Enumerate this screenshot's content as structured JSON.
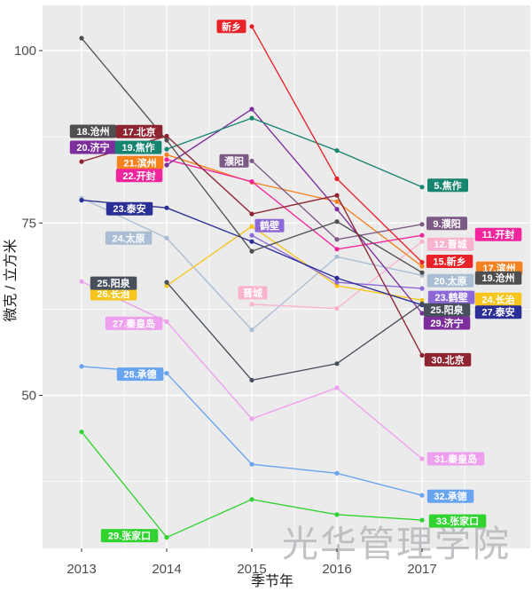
{
  "chart_data": {
    "type": "line",
    "title": "",
    "xlabel": "季节年",
    "ylabel": "微克 / 立方米",
    "x_tick_values": [
      2013,
      2014,
      2015,
      2016,
      2017
    ],
    "x_tick_labels": [
      "2013",
      "2014",
      "2015",
      "2016",
      "2017"
    ],
    "y_tick_values": [
      50,
      75,
      100
    ],
    "y_tick_labels": [
      "50",
      "75",
      "100"
    ],
    "x_minor_ticks": [
      2013.5,
      2014.5,
      2015.5,
      2016.5,
      2017.5
    ],
    "y_minor_ticks": [
      37.5,
      62.5,
      87.5
    ],
    "xlim": [
      2012.55,
      2018.27
    ],
    "ylim": [
      27.8,
      106.6
    ],
    "grid": true,
    "legend_position": "none-direct-labels",
    "panel_bg": "#ebebeb",
    "grid_color": "#ffffff",
    "axis_text_color": "#4d4d4d",
    "watermark": {
      "text": "光华管理学院",
      "color": "#b7b8bc"
    },
    "series": [
      {
        "id": "qinhuangdao",
        "name": "秦皇岛",
        "color": "#ee9fee",
        "x": [
          2013,
          2014,
          2015,
          2016,
          2017
        ],
        "values": [
          66.5,
          60.7,
          46.6,
          51.1,
          40.8
        ],
        "labels": [
          {
            "text": "27.秦皇岛",
            "year": 2014,
            "value": 60.7,
            "dx": -37,
            "dy": 2
          },
          {
            "text": "31.秦皇岛",
            "year": 2017,
            "value": 40.8,
            "dx": 38,
            "dy": 0
          }
        ]
      },
      {
        "id": "taiyuan",
        "name": "太原",
        "color": "#a9bdd3",
        "x": [
          2013,
          2014,
          2015,
          2016,
          2017
        ],
        "values": [
          78.6,
          72.8,
          59.5,
          70.1,
          67.4
        ],
        "labels": [
          {
            "text": "24.太原",
            "year": 2014,
            "value": 72.8,
            "dx": -43,
            "dy": 0
          },
          {
            "text": "20.太原",
            "year": 2017,
            "value": 67.4,
            "dx": 32,
            "dy": 6
          }
        ]
      },
      {
        "id": "chengde",
        "name": "承德",
        "color": "#69a4f0",
        "x": [
          2013,
          2014,
          2015,
          2016,
          2017
        ],
        "values": [
          54.2,
          53.2,
          40.0,
          38.7,
          35.5
        ],
        "labels": [
          {
            "text": "28.承德",
            "year": 2014,
            "value": 53.2,
            "dx": -30,
            "dy": 1
          },
          {
            "text": "32.承德",
            "year": 2017,
            "value": 35.5,
            "dx": 32,
            "dy": 1
          }
        ]
      },
      {
        "id": "zhangjiakou",
        "name": "张家口",
        "color": "#31d331",
        "x": [
          2013,
          2014,
          2015,
          2016,
          2017
        ],
        "values": [
          44.7,
          29.4,
          34.9,
          32.7,
          31.9
        ],
        "labels": [
          {
            "text": "29.张家口",
            "year": 2014,
            "value": 29.4,
            "dx": -42,
            "dy": -2
          },
          {
            "text": "33.张家口",
            "year": 2017,
            "value": 31.9,
            "dx": 40,
            "dy": 1
          }
        ]
      },
      {
        "id": "jincheng",
        "name": "晋城",
        "color": "#f9b3ce",
        "x": [
          2015,
          2016,
          2017
        ],
        "values": [
          63.2,
          62.6,
          72.3
        ],
        "labels": [
          {
            "text": "晋城",
            "year": 2015,
            "value": 63.2,
            "dx": 1,
            "dy": -13
          },
          {
            "text": "12.晋城",
            "year": 2017,
            "value": 72.3,
            "dx": 32,
            "dy": 3
          }
        ]
      },
      {
        "id": "changzhi",
        "name": "长治",
        "color": "#f7c51c",
        "x": [
          2014,
          2015,
          2016,
          2017
        ],
        "values": [
          65.9,
          74.5,
          65.9,
          63.8
        ],
        "labels": [
          {
            "text": "26.长治",
            "year": 2014,
            "value": 65.9,
            "dx": -60,
            "dy": 9
          },
          {
            "text": "24.长治",
            "year": 2017,
            "value": 63.8,
            "dx": 86,
            "dy": -1
          }
        ]
      },
      {
        "id": "binzhou",
        "name": "滨州",
        "color": "#f5821e",
        "x": [
          2014,
          2015,
          2016,
          2017
        ],
        "values": [
          84.9,
          80.9,
          78.1,
          68.7
        ],
        "labels": [
          {
            "text": "21.滨州",
            "year": 2014,
            "value": 84.9,
            "dx": -30,
            "dy": 9
          },
          {
            "text": "17.滨州",
            "year": 2017,
            "value": 68.7,
            "dx": 87,
            "dy": 2
          }
        ]
      },
      {
        "id": "kaifeng",
        "name": "开封",
        "color": "#f2259c",
        "x": [
          2014,
          2015,
          2016,
          2017
        ],
        "values": [
          84.2,
          81.0,
          71.2,
          73.2
        ],
        "labels": [
          {
            "text": "22.开封",
            "year": 2014,
            "value": 84.2,
            "dx": -31,
            "dy": 18
          },
          {
            "text": "11.开封",
            "year": 2017,
            "value": 73.2,
            "dx": 86,
            "dy": -1
          }
        ]
      },
      {
        "id": "hebi",
        "name": "鹤壁",
        "color": "#8c68d8",
        "x": [
          2015,
          2016,
          2017
        ],
        "values": [
          73.2,
          66.4,
          65.5
        ],
        "labels": [
          {
            "text": "鹤壁",
            "year": 2015,
            "value": 73.2,
            "dx": 20,
            "dy": -11
          },
          {
            "text": "23.鹤壁",
            "year": 2017,
            "value": 65.5,
            "dx": 33,
            "dy": 10
          }
        ]
      },
      {
        "id": "puyang",
        "name": "濮阳",
        "color": "#7d5a85",
        "x": [
          2015,
          2016,
          2017
        ],
        "values": [
          84.0,
          72.6,
          74.8
        ],
        "labels": [
          {
            "text": "濮阳",
            "year": 2015,
            "value": 84.0,
            "dx": -20,
            "dy": 0
          },
          {
            "text": "9.濮阳",
            "year": 2017,
            "value": 74.8,
            "dx": 28,
            "dy": -1
          }
        ]
      },
      {
        "id": "jining",
        "name": "济宁",
        "color": "#7d2d9c",
        "x": [
          2014,
          2015,
          2016,
          2017
        ],
        "values": [
          83.4,
          91.5,
          77.0,
          61.9
        ],
        "labels": [
          {
            "text": "20.济宁",
            "year": 2014,
            "value": 83.4,
            "dx": -83,
            "dy": -20
          },
          {
            "text": "29.济宁",
            "year": 2017,
            "value": 61.9,
            "dx": 28,
            "dy": 11
          }
        ]
      },
      {
        "id": "jiaozuo",
        "name": "焦作",
        "color": "#16856f",
        "x": [
          2014,
          2015,
          2016,
          2017
        ],
        "values": [
          85.7,
          90.2,
          85.5,
          80.2
        ],
        "labels": [
          {
            "text": "19.焦作",
            "year": 2014,
            "value": 85.7,
            "dx": -32,
            "dy": -2
          },
          {
            "text": "5.焦作",
            "year": 2017,
            "value": 80.2,
            "dx": 29,
            "dy": -2
          }
        ]
      },
      {
        "id": "xinxiang",
        "name": "新乡",
        "color": "#e92128",
        "x": [
          2015,
          2016,
          2017
        ],
        "values": [
          103.5,
          81.4,
          69.3
        ],
        "labels": [
          {
            "text": "新乡",
            "year": 2015,
            "value": 103.5,
            "dx": -23,
            "dy": 0
          },
          {
            "text": "15.新乡",
            "year": 2017,
            "value": 69.3,
            "dx": 31,
            "dy": -1
          }
        ]
      },
      {
        "id": "taian",
        "name": "泰安",
        "color": "#2a2f96",
        "x": [
          2013,
          2014,
          2015,
          2016,
          2017
        ],
        "values": [
          78.3,
          77.2,
          72.3,
          67.0,
          63.1
        ],
        "labels": [
          {
            "text": "23.泰安",
            "year": 2014,
            "value": 77.2,
            "dx": -42,
            "dy": 1
          },
          {
            "text": "27.泰安",
            "year": 2017,
            "value": 63.1,
            "dx": 86,
            "dy": 8
          }
        ]
      },
      {
        "id": "yangquan",
        "name": "阳泉",
        "color": "#474f5d",
        "x": [
          2014,
          2015,
          2016,
          2017
        ],
        "values": [
          66.4,
          52.2,
          54.6,
          63.3
        ],
        "labels": [
          {
            "text": "25.阳泉",
            "year": 2014,
            "value": 66.4,
            "dx": -60,
            "dy": 1
          },
          {
            "text": "25.阳泉",
            "year": 2017,
            "value": 63.3,
            "dx": 28,
            "dy": 7
          }
        ]
      },
      {
        "id": "cangzhou",
        "name": "沧州",
        "color": "#4f4f4f",
        "x": [
          2013,
          2014,
          2015,
          2016,
          2017
        ],
        "values": [
          101.8,
          87.0,
          70.9,
          75.2,
          67.8
        ],
        "labels": [
          {
            "text": "18.沧州",
            "year": 2014,
            "value": 87.0,
            "dx": -83,
            "dy": -10
          },
          {
            "text": "19.沧州",
            "year": 2017,
            "value": 67.8,
            "dx": 86,
            "dy": 6
          }
        ]
      },
      {
        "id": "beijing",
        "name": "北京",
        "color": "#8e2430",
        "x": [
          2013,
          2014,
          2015,
          2016,
          2017
        ],
        "values": [
          83.9,
          87.6,
          76.3,
          79.0,
          55.8
        ],
        "labels": [
          {
            "text": "17.北京",
            "year": 2014,
            "value": 87.6,
            "dx": -31,
            "dy": -5
          },
          {
            "text": "30.北京",
            "year": 2017,
            "value": 55.8,
            "dx": 29,
            "dy": 5
          }
        ]
      }
    ]
  }
}
